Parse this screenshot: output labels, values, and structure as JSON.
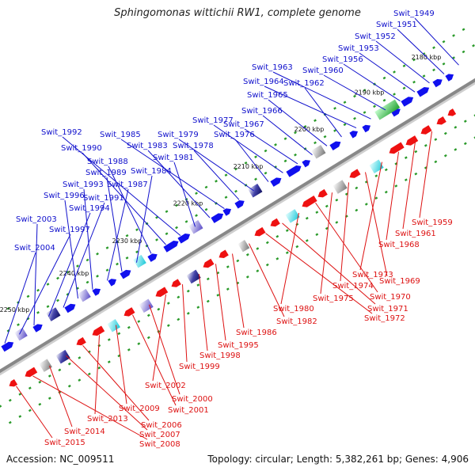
{
  "title": "Sphingomonas wittichii RW1, complete genome",
  "footer": {
    "accession": "Accession: NC_009511",
    "summary": "Topology: circular; Length: 5,382,261 bp; Genes: 4,906"
  },
  "colors": {
    "forward": "#1010ee",
    "reverse": "#ee1111",
    "backbone": "#888888",
    "tick": "#2a9a2a",
    "label_forward": "#1010cc",
    "label_reverse": "#dd1111"
  },
  "kbp_labels": [
    "2180 kbp",
    "2190 kbp",
    "2200 kbp",
    "2210 kbp",
    "2220 kbp",
    "2230 kbp",
    "2240 kbp",
    "2250 kbp"
  ],
  "forward_labels": [
    "Swit_1949",
    "Swit_1951",
    "Swit_1952",
    "Swit_1953",
    "Swit_1956",
    "Swit_1960",
    "Swit_1963",
    "Swit_1964",
    "Swit_1962",
    "Swit_1965",
    "Swit_1966",
    "Swit_1967",
    "Swit_1977",
    "Swit_1976",
    "Swit_1979",
    "Swit_1978",
    "Swit_1985",
    "Swit_1983",
    "Swit_1981",
    "Swit_1992",
    "Swit_1990",
    "Swit_1988",
    "Swit_1984",
    "Swit_1989",
    "Swit_1987",
    "Swit_1993",
    "Swit_1996",
    "Swit_1991",
    "Swit_1994",
    "Swit_2003",
    "Swit_1997",
    "Swit_2004"
  ],
  "reverse_labels": [
    "Swit_1959",
    "Swit_1961",
    "Swit_1968",
    "Swit_1973",
    "Swit_1969",
    "Swit_1974",
    "Swit_1975",
    "Swit_1970",
    "Swit_1980",
    "Swit_1971",
    "Swit_1972",
    "Swit_1982",
    "Swit_1986",
    "Swit_1995",
    "Swit_1998",
    "Swit_1999",
    "Swit_2002",
    "Swit_2000",
    "Swit_2001",
    "Swit_2009",
    "Swit_2013",
    "Swit_2006",
    "Swit_2007",
    "Swit_2014",
    "Swit_2008",
    "Swit_2015"
  ]
}
